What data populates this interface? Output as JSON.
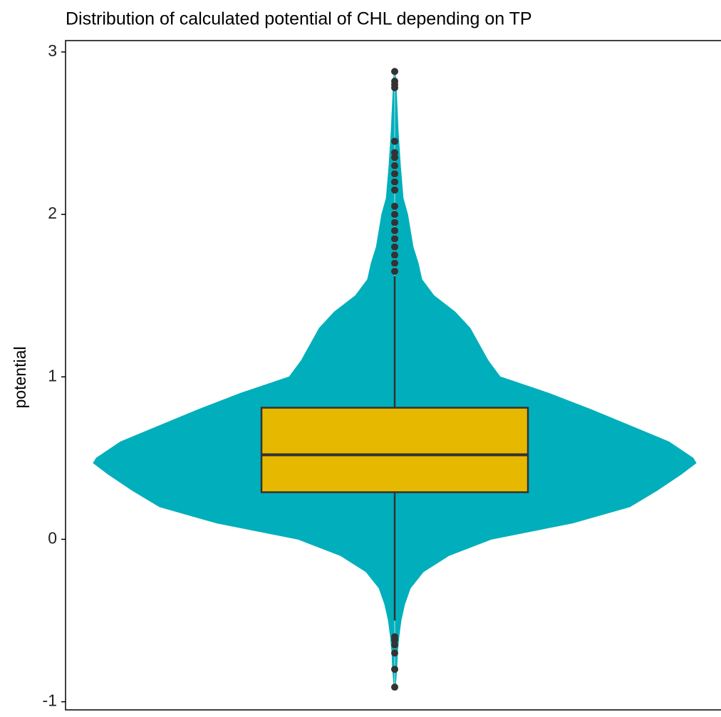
{
  "chart_data": {
    "type": "violin",
    "title": "Distribution of calculated potential of CHL depending on TP",
    "y_label": "potential",
    "ylim": [
      -1.05,
      3.07
    ],
    "yticks": [
      -1,
      0,
      1,
      2,
      3
    ],
    "violin_color": "#00AFBB",
    "box_color": "#E7B800",
    "outlier_color": "#333333",
    "violin_y": [
      2.88,
      2.7,
      2.5,
      2.3,
      2.1,
      2.0,
      1.9,
      1.8,
      1.7,
      1.6,
      1.5,
      1.4,
      1.3,
      1.2,
      1.1,
      1.0,
      0.9,
      0.8,
      0.7,
      0.6,
      0.5,
      0.47,
      0.4,
      0.3,
      0.2,
      0.1,
      0,
      -0.1,
      -0.2,
      -0.3,
      -0.4,
      -0.5,
      -0.6,
      -0.7,
      -0.8,
      -0.91
    ],
    "violin_density": [
      0.002,
      0.007,
      0.012,
      0.019,
      0.028,
      0.043,
      0.052,
      0.061,
      0.078,
      0.09,
      0.13,
      0.2,
      0.25,
      0.28,
      0.31,
      0.35,
      0.51,
      0.65,
      0.78,
      0.91,
      0.99,
      1,
      0.95,
      0.87,
      0.78,
      0.59,
      0.32,
      0.18,
      0.095,
      0.052,
      0.033,
      0.021,
      0.014,
      0.009,
      0.007,
      0.002
    ],
    "box": {
      "whisker_low": -0.5,
      "q1": 0.29,
      "median": 0.52,
      "q3": 0.81,
      "whisker_high": 1.62
    },
    "outliers": [
      2.88,
      2.82,
      2.8,
      2.78,
      2.45,
      2.38,
      2.35,
      2.3,
      2.25,
      2.2,
      2.15,
      2.05,
      2.0,
      1.95,
      1.9,
      1.85,
      1.8,
      1.75,
      1.7,
      1.65,
      -0.6,
      -0.62,
      -0.65,
      -0.7,
      -0.8,
      -0.91
    ]
  }
}
